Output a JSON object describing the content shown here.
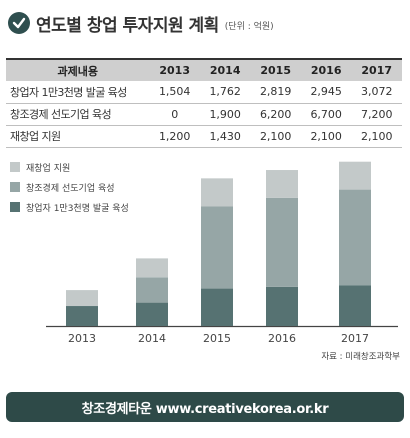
{
  "header": {
    "title": "연도별 창업 투자지원 계획",
    "unit": "(단위 : 억원)"
  },
  "table": {
    "header_label": "과제내용",
    "years": [
      "2013",
      "2014",
      "2015",
      "2016",
      "2017"
    ],
    "rows": [
      {
        "label": "창업자 1만3천명 발굴 육성",
        "values": [
          "1,504",
          "1,762",
          "2,819",
          "2,945",
          "3,072"
        ]
      },
      {
        "label": "창조경제 선도기업 육성",
        "values": [
          "0",
          "1,900",
          "6,200",
          "6,700",
          "7,200"
        ]
      },
      {
        "label": "재창업 지원",
        "values": [
          "1,200",
          "1,430",
          "2,100",
          "2,100",
          "2,100"
        ]
      }
    ]
  },
  "colors": {
    "startup": "#567272",
    "leading": "#96a6a6",
    "restart": "#c3c9c9",
    "footer": "#2e4a48"
  },
  "chart_data": {
    "type": "bar",
    "stacked": true,
    "categories": [
      "2013",
      "2014",
      "2015",
      "2016",
      "2017"
    ],
    "series": [
      {
        "name": "창업자 1만3천명 발굴 육성",
        "values": [
          1504,
          1762,
          2819,
          2945,
          3072
        ],
        "color": "#567272"
      },
      {
        "name": "창조경제 선도기업 육성",
        "values": [
          0,
          1900,
          6200,
          6700,
          7200
        ],
        "color": "#96a6a6"
      },
      {
        "name": "재창업 지원",
        "values": [
          1200,
          1430,
          2100,
          2100,
          2100
        ],
        "color": "#c3c9c9"
      }
    ],
    "legend_entries": [
      "재창업 지원",
      "창조경제 선도기업 육성",
      "창업자 1만3천명 발굴 육성"
    ],
    "legend_placement": "top-left",
    "ylim": [
      0,
      12500
    ],
    "grid": false
  },
  "source": "자료 : 미래창조과학부",
  "footer": {
    "text": "창조경제타운 www.creativekorea.or.kr"
  }
}
